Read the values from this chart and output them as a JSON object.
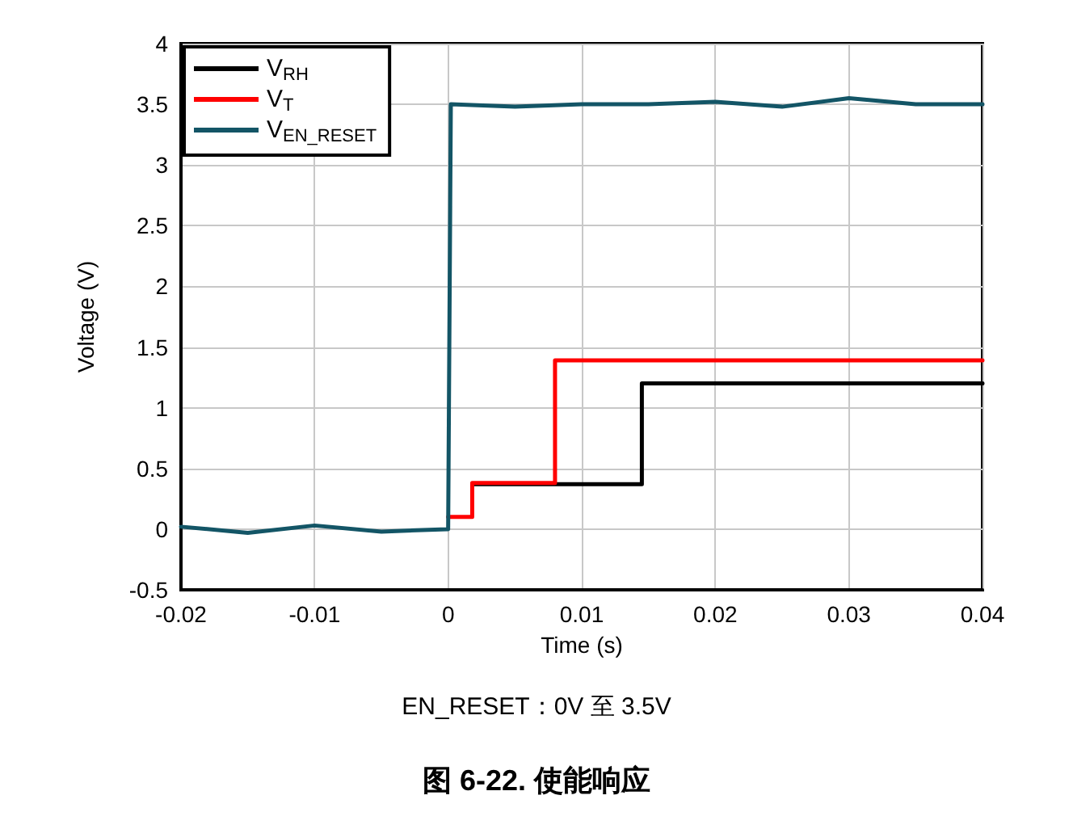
{
  "chart_data": {
    "type": "line",
    "title": "图 6-22. 使能响应",
    "xlabel": "Time (s)",
    "ylabel": "Voltage (V)",
    "annotations": [
      "EN_RESET：0V 至 3.5V"
    ],
    "xlim": [
      -0.02,
      0.04
    ],
    "xticks": [
      -0.02,
      -0.01,
      0,
      0.01,
      0.02,
      0.03,
      0.04
    ],
    "ylim": [
      -0.5,
      4
    ],
    "yticks": [
      -0.5,
      0,
      0.5,
      1,
      1.5,
      2,
      2.5,
      3,
      3.5,
      4
    ],
    "grid": true,
    "legend": "top left",
    "marker": "none",
    "line_style": "solid",
    "series": [
      {
        "name": "V$_{RH}$",
        "color": "#000000",
        "x": [
          0.0018,
          0.0145,
          0.0145,
          0.04
        ],
        "values": [
          0.37,
          0.37,
          1.2,
          1.2
        ]
      },
      {
        "name": "V$_{T}$",
        "color": "#ff0000",
        "x": [
          0,
          0.0018,
          0.0018,
          0.008,
          0.008,
          0.04
        ],
        "values": [
          0.1,
          0.1,
          0.38,
          0.38,
          1.39,
          1.39
        ]
      },
      {
        "name": "V$_{EN_RESET}$",
        "color": "#135566",
        "x": [
          -0.02,
          -0.015,
          -0.01,
          -0.005,
          -0.0001,
          0,
          0.0002,
          0.005,
          0.01,
          0.015,
          0.02,
          0.025,
          0.03,
          0.035,
          0.04
        ],
        "values": [
          0.02,
          -0.03,
          0.03,
          -0.02,
          0.0,
          0.0,
          3.5,
          3.48,
          3.5,
          3.5,
          3.52,
          3.48,
          3.55,
          3.5,
          3.5
        ]
      }
    ]
  }
}
